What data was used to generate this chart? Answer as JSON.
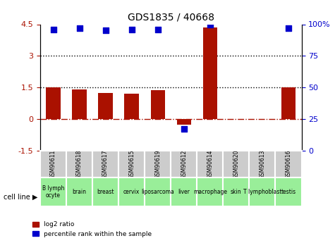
{
  "title": "GDS1835 / 40668",
  "samples": [
    "GSM90611",
    "GSM90618",
    "GSM90617",
    "GSM90615",
    "GSM90619",
    "GSM90612",
    "GSM90614",
    "GSM90620",
    "GSM90613",
    "GSM90616"
  ],
  "cell_lines": [
    "B lymph\nocyte",
    "brain",
    "breast",
    "cervix",
    "liposarcoma",
    "liver",
    "macrophage",
    "skin",
    "T lymphoblast",
    "testis"
  ],
  "cell_line_colors": [
    "#ccffcc",
    "#ccffcc",
    "#ccffcc",
    "#ccffcc",
    "#ccffcc",
    "#ccffcc",
    "#ccffcc",
    "#ccffcc",
    "#ccffcc",
    "#ccffcc"
  ],
  "log2_ratio": [
    1.5,
    1.4,
    1.25,
    1.2,
    1.38,
    -0.25,
    4.35,
    0.0,
    0.0,
    1.5
  ],
  "percentile_rank": [
    96,
    97,
    95,
    96,
    96,
    17,
    100,
    null,
    null,
    97
  ],
  "ylim_left": [
    -1.5,
    4.5
  ],
  "ylim_right": [
    0,
    100
  ],
  "bar_color": "#aa1100",
  "dot_color": "#0000cc",
  "hline_y": 0.0,
  "dotted_lines": [
    1.5,
    3.0
  ],
  "right_yticks": [
    0,
    25,
    50,
    75,
    100
  ],
  "right_ytick_labels": [
    "0",
    "25",
    "50",
    "75",
    "100%"
  ],
  "left_yticks": [
    -1.5,
    0,
    1.5,
    3,
    4.5
  ],
  "left_ytick_labels": [
    "-1.5",
    "0",
    "1.5",
    "3",
    "4.5"
  ]
}
